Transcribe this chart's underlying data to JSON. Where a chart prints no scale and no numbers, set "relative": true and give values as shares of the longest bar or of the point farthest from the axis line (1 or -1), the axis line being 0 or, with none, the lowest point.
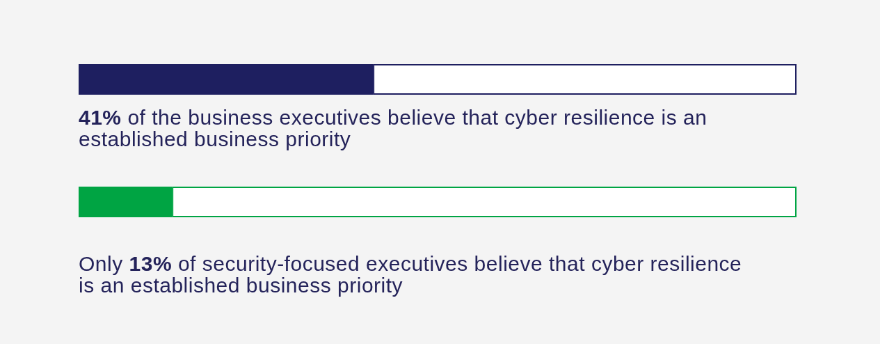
{
  "chart_data": [
    {
      "type": "bar",
      "orientation": "horizontal",
      "stacked": true,
      "relative": true,
      "categories": [
        null
      ],
      "series": [
        {
          "color": "#1e1f60",
          "values": [
            0.41
          ]
        },
        {
          "color": "#ffffff",
          "values": [
            0.59
          ]
        }
      ],
      "annotations": [
        "41% of the business executives believe that cyber resilience is an established business priority"
      ]
    },
    {
      "type": "bar",
      "orientation": "horizontal",
      "stacked": true,
      "relative": true,
      "categories": [
        null
      ],
      "series": [
        {
          "color": "#00a443",
          "values": [
            0.13
          ]
        },
        {
          "color": "#ffffff",
          "values": [
            0.87
          ]
        }
      ],
      "annotations": [
        "Only 13% of security-focused executives believe that cyber resilience is an established business priority"
      ]
    }
  ]
}
